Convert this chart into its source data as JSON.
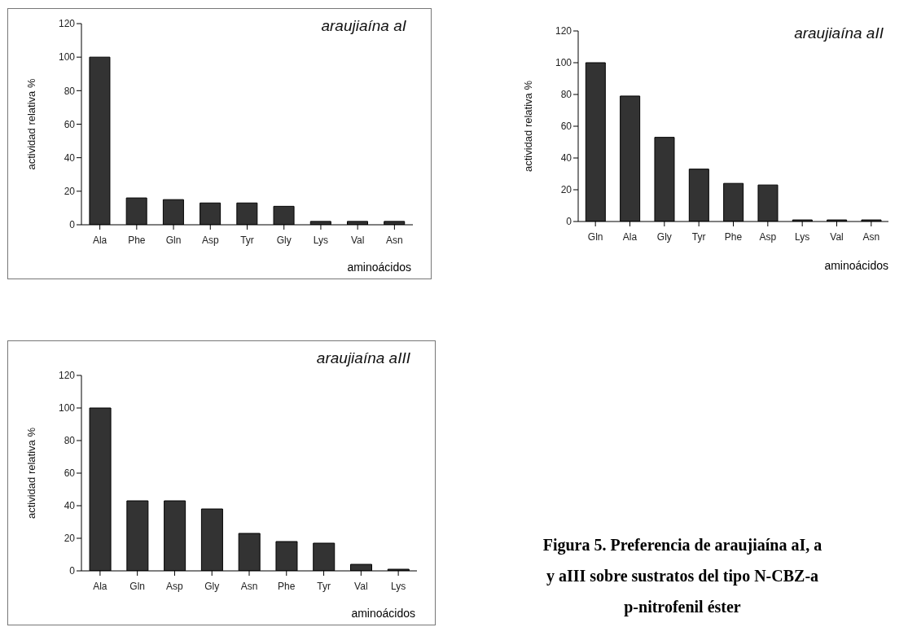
{
  "chart_data": [
    {
      "type": "bar",
      "title": "araujiaína aI",
      "ylabel": "actividad relativa %",
      "xlabel": "aminoácidos",
      "categories": [
        "Ala",
        "Phe",
        "Gln",
        "Asp",
        "Tyr",
        "Gly",
        "Lys",
        "Val",
        "Asn"
      ],
      "values": [
        100,
        16,
        15,
        13,
        13,
        11,
        2,
        2,
        2
      ],
      "color": "#333333",
      "ylim": [
        0,
        120
      ],
      "yticks": [
        0,
        20,
        40,
        60,
        80,
        100,
        120
      ],
      "grid": false,
      "legend": false
    },
    {
      "type": "bar",
      "title": "araujiaína aII",
      "ylabel": "actividad relativa %",
      "xlabel": "aminoácidos",
      "categories": [
        "Gln",
        "Ala",
        "Gly",
        "Tyr",
        "Phe",
        "Asp",
        "Lys",
        "Val",
        "Asn"
      ],
      "values": [
        100,
        79,
        53,
        33,
        24,
        23,
        1,
        1,
        1
      ],
      "color": "#333333",
      "ylim": [
        0,
        120
      ],
      "yticks": [
        0,
        20,
        40,
        60,
        80,
        100,
        120
      ],
      "grid": false,
      "legend": false
    },
    {
      "type": "bar",
      "title": "araujiaína aIII",
      "ylabel": "actividad relativa %",
      "xlabel": "aminoácidos",
      "categories": [
        "Ala",
        "Gln",
        "Asp",
        "Gly",
        "Asn",
        "Phe",
        "Tyr",
        "Val",
        "Lys"
      ],
      "values": [
        100,
        43,
        43,
        38,
        23,
        18,
        17,
        4,
        1
      ],
      "color": "#333333",
      "ylim": [
        0,
        120
      ],
      "yticks": [
        0,
        20,
        40,
        60,
        80,
        100,
        120
      ],
      "grid": false,
      "legend": false,
      "annotations": [
        "Figura 5. Preferencia de araujiaína aI, a",
        "y aIII sobre  sustratos del tipo N-CBZ-a",
        "p-nitrofenil éster"
      ]
    }
  ]
}
